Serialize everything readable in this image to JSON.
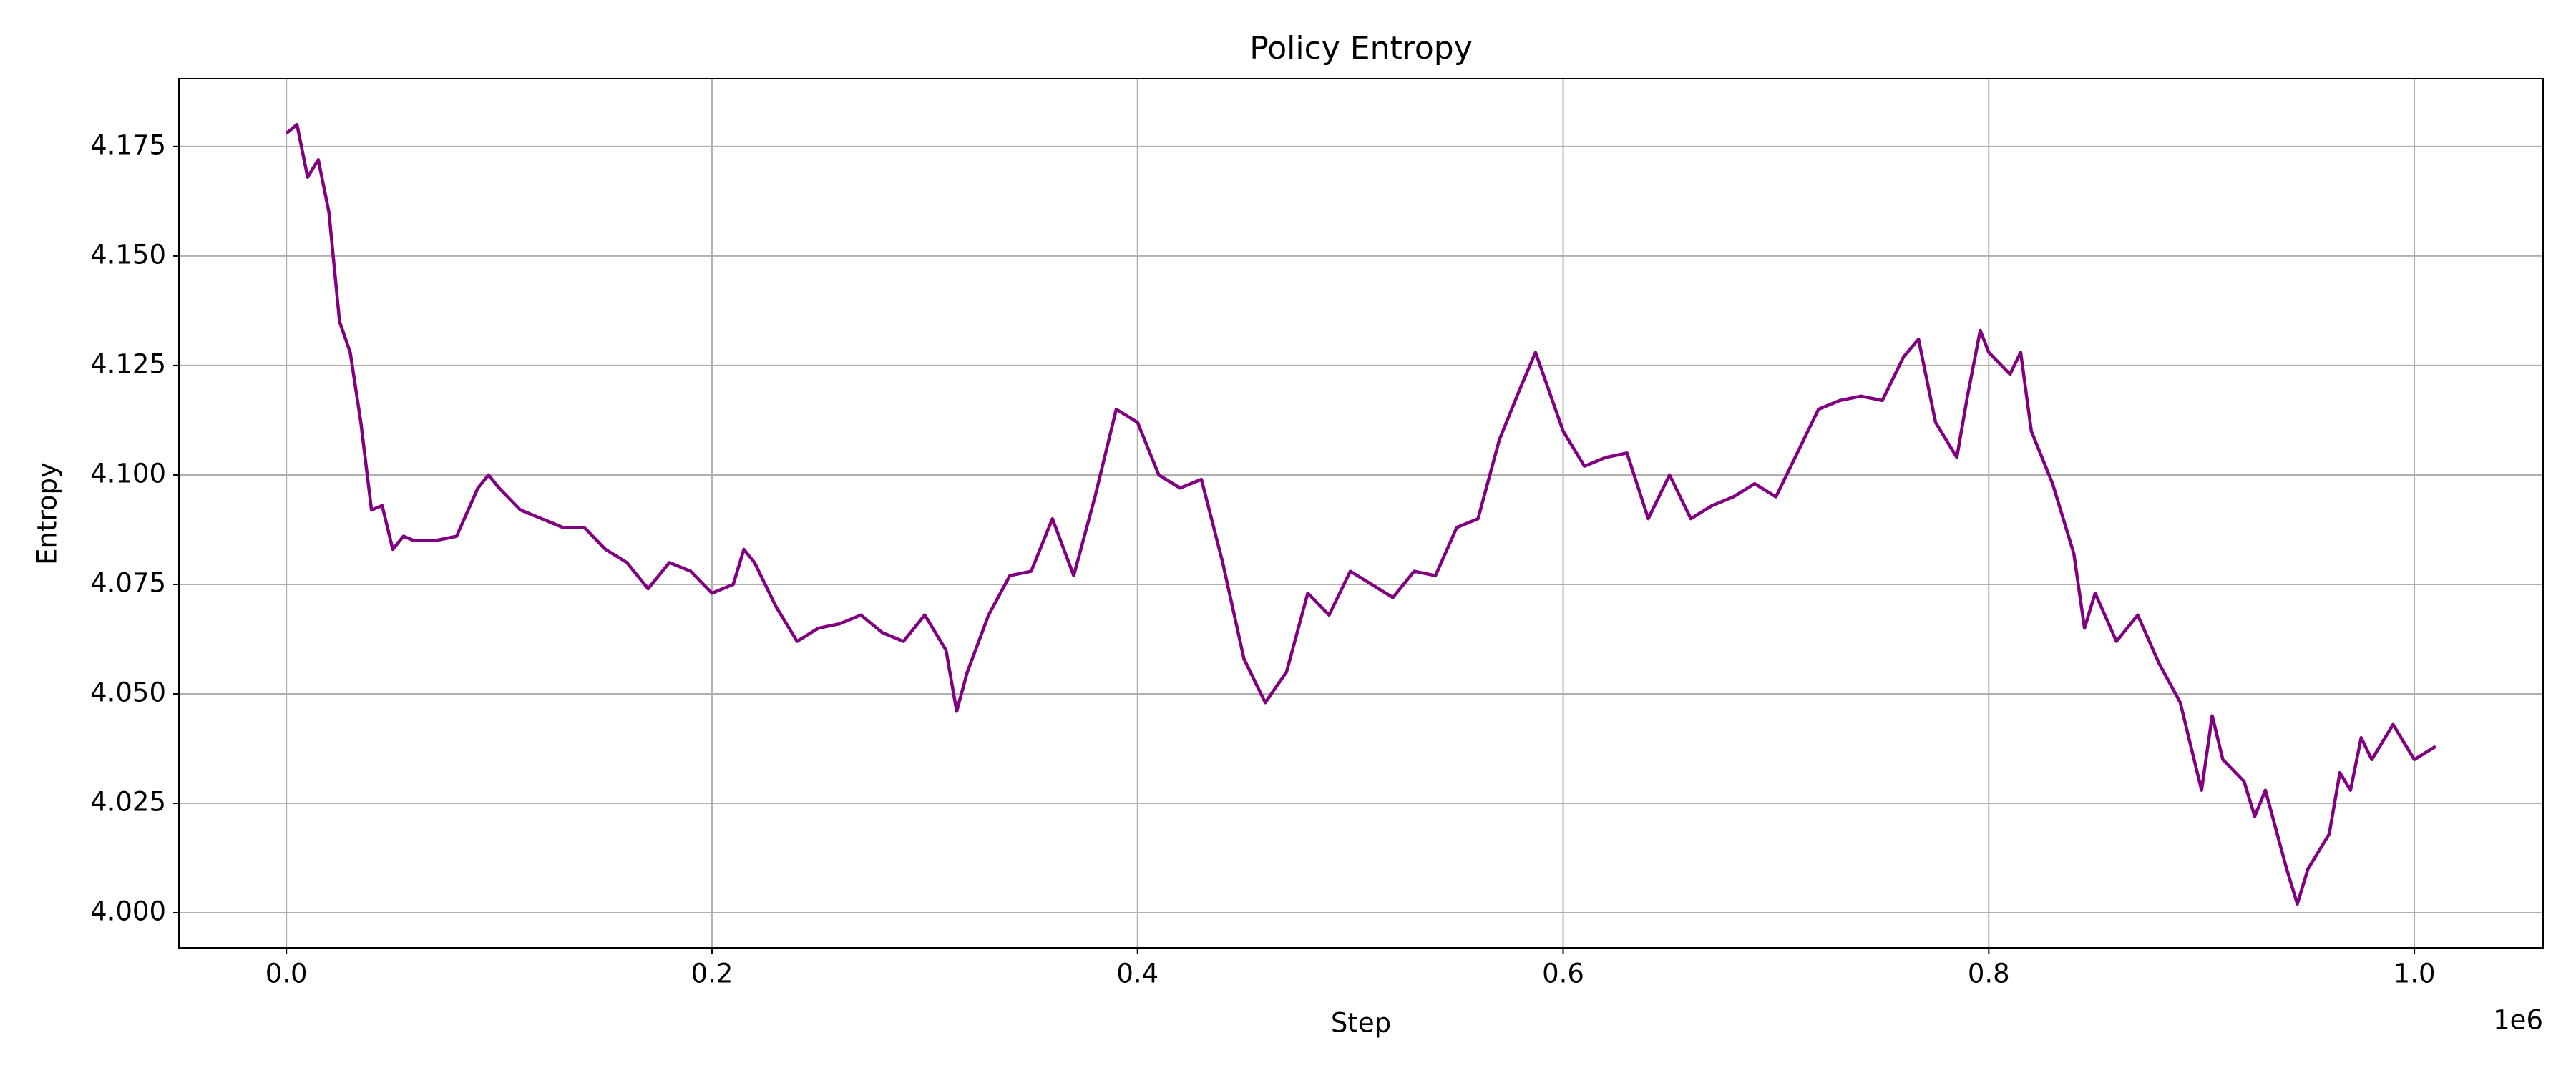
{
  "chart_data": {
    "type": "line",
    "title": "Policy Entropy",
    "xlabel": "Step",
    "ylabel": "Entropy",
    "x_offset_label": "1e6",
    "color": "#800080",
    "grid": true,
    "x": [
      0,
      5000,
      10000,
      15000,
      20000,
      25000,
      30000,
      35000,
      40000,
      45000,
      50000,
      55000,
      60000,
      65000,
      70000,
      80000,
      90000,
      95000,
      100000,
      110000,
      120000,
      130000,
      140000,
      150000,
      160000,
      170000,
      180000,
      190000,
      200000,
      210000,
      215000,
      220000,
      230000,
      240000,
      250000,
      260000,
      270000,
      280000,
      290000,
      300000,
      310000,
      315000,
      320000,
      330000,
      340000,
      350000,
      360000,
      370000,
      380000,
      390000,
      400000,
      410000,
      420000,
      430000,
      440000,
      450000,
      460000,
      470000,
      480000,
      490000,
      500000,
      510000,
      520000,
      530000,
      540000,
      550000,
      560000,
      570000,
      580000,
      587000,
      600000,
      610000,
      620000,
      630000,
      640000,
      650000,
      660000,
      670000,
      680000,
      690000,
      700000,
      710000,
      720000,
      730000,
      740000,
      750000,
      760000,
      767000,
      775000,
      785000,
      790000,
      796000,
      800000,
      810000,
      815000,
      820000,
      830000,
      840000,
      845000,
      850000,
      860000,
      870000,
      880000,
      890000,
      895000,
      900000,
      905000,
      910000,
      920000,
      925000,
      930000,
      940000,
      945000,
      950000,
      960000,
      965000,
      970000,
      975000,
      980000,
      990000,
      1000000,
      1010000
    ],
    "values": [
      4.178,
      4.18,
      4.168,
      4.172,
      4.16,
      4.135,
      4.128,
      4.112,
      4.092,
      4.093,
      4.083,
      4.086,
      4.085,
      4.085,
      4.085,
      4.086,
      4.097,
      4.1,
      4.097,
      4.092,
      4.09,
      4.088,
      4.088,
      4.083,
      4.08,
      4.074,
      4.08,
      4.078,
      4.073,
      4.075,
      4.083,
      4.08,
      4.07,
      4.062,
      4.065,
      4.066,
      4.068,
      4.064,
      4.062,
      4.068,
      4.06,
      4.046,
      4.055,
      4.068,
      4.077,
      4.078,
      4.09,
      4.077,
      4.095,
      4.115,
      4.112,
      4.1,
      4.097,
      4.099,
      4.08,
      4.058,
      4.048,
      4.055,
      4.073,
      4.068,
      4.078,
      4.075,
      4.072,
      4.078,
      4.077,
      4.088,
      4.09,
      4.108,
      4.12,
      4.128,
      4.11,
      4.102,
      4.104,
      4.105,
      4.09,
      4.1,
      4.09,
      4.093,
      4.095,
      4.098,
      4.095,
      4.105,
      4.115,
      4.117,
      4.118,
      4.117,
      4.127,
      4.131,
      4.112,
      4.104,
      4.118,
      4.133,
      4.128,
      4.123,
      4.128,
      4.11,
      4.098,
      4.082,
      4.065,
      4.073,
      4.062,
      4.068,
      4.057,
      4.048,
      4.038,
      4.028,
      4.045,
      4.035,
      4.03,
      4.022,
      4.028,
      4.01,
      4.002,
      4.01,
      4.018,
      4.032,
      4.028,
      4.04,
      4.035,
      4.043,
      4.035,
      4.038
    ],
    "xlim": [
      -50500,
      1060500
    ],
    "ylim": [
      3.992,
      4.1905
    ],
    "xticks": [
      {
        "value": 0,
        "label": "0.0"
      },
      {
        "value": 200000,
        "label": "0.2"
      },
      {
        "value": 400000,
        "label": "0.4"
      },
      {
        "value": 600000,
        "label": "0.6"
      },
      {
        "value": 800000,
        "label": "0.8"
      },
      {
        "value": 1000000,
        "label": "1.0"
      }
    ],
    "yticks": [
      {
        "value": 4.0,
        "label": "4.000"
      },
      {
        "value": 4.025,
        "label": "4.025"
      },
      {
        "value": 4.05,
        "label": "4.050"
      },
      {
        "value": 4.075,
        "label": "4.075"
      },
      {
        "value": 4.1,
        "label": "4.100"
      },
      {
        "value": 4.125,
        "label": "4.125"
      },
      {
        "value": 4.15,
        "label": "4.150"
      },
      {
        "value": 4.175,
        "label": "4.175"
      }
    ]
  }
}
